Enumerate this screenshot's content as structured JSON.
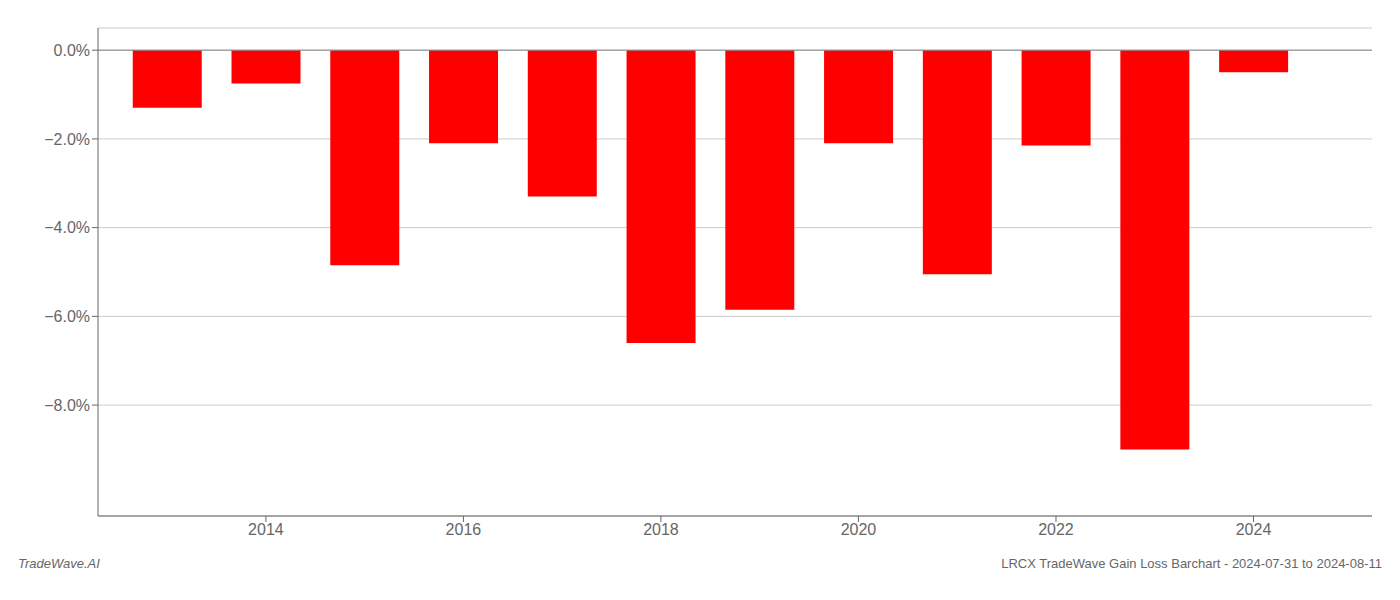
{
  "chart_data": {
    "type": "bar",
    "x": [
      2013,
      2014,
      2015,
      2016,
      2017,
      2018,
      2019,
      2020,
      2021,
      2022,
      2023,
      2024
    ],
    "values": [
      -1.3,
      -0.75,
      -4.85,
      -2.1,
      -3.3,
      -6.6,
      -5.85,
      -2.1,
      -5.05,
      -2.15,
      -9.0,
      -0.5
    ],
    "color": "#ff0000",
    "xlim": [
      2012.3,
      2025.2
    ],
    "xticks": [
      2014,
      2016,
      2018,
      2020,
      2022,
      2024
    ],
    "ylim": [
      -10.5,
      0.5
    ],
    "yticks": [
      {
        "value": 0.0,
        "label": "0.0%"
      },
      {
        "value": -2.0,
        "label": "−2.0%"
      },
      {
        "value": -4.0,
        "label": "−4.0%"
      },
      {
        "value": -6.0,
        "label": "−6.0%"
      },
      {
        "value": -8.0,
        "label": "−8.0%"
      }
    ],
    "grid": true,
    "annotations": [
      "TradeWave.AI",
      "LRCX TradeWave Gain Loss Barchart - 2024-07-31 to 2024-08-11"
    ]
  }
}
